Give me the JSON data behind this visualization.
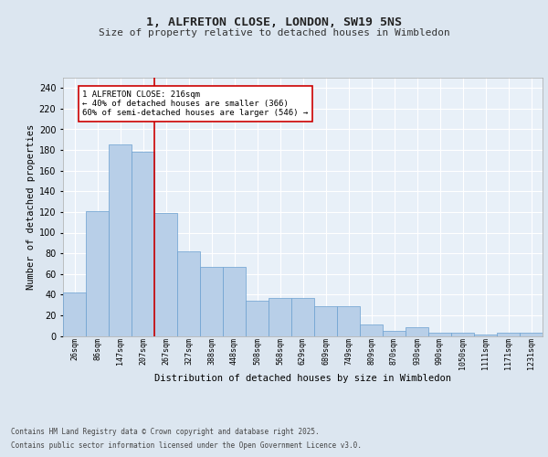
{
  "title1": "1, ALFRETON CLOSE, LONDON, SW19 5NS",
  "title2": "Size of property relative to detached houses in Wimbledon",
  "xlabel": "Distribution of detached houses by size in Wimbledon",
  "ylabel": "Number of detached properties",
  "bar_labels": [
    "26sqm",
    "86sqm",
    "147sqm",
    "207sqm",
    "267sqm",
    "327sqm",
    "388sqm",
    "448sqm",
    "508sqm",
    "568sqm",
    "629sqm",
    "689sqm",
    "749sqm",
    "809sqm",
    "870sqm",
    "930sqm",
    "990sqm",
    "1050sqm",
    "1111sqm",
    "1171sqm",
    "1231sqm"
  ],
  "bar_values": [
    42,
    121,
    185,
    178,
    119,
    82,
    67,
    67,
    34,
    37,
    37,
    29,
    29,
    11,
    5,
    8,
    3,
    3,
    1,
    3,
    3
  ],
  "bar_color": "#b8cfe8",
  "bar_edge_color": "#6a9fd0",
  "red_line_x": 3.5,
  "red_line_color": "#cc0000",
  "annotation_text": "1 ALFRETON CLOSE: 216sqm\n← 40% of detached houses are smaller (366)\n60% of semi-detached houses are larger (546) →",
  "annotation_box_color": "#ffffff",
  "annotation_box_edge": "#cc0000",
  "bg_color": "#dce6f0",
  "plot_bg": "#e8f0f8",
  "footer1": "Contains HM Land Registry data © Crown copyright and database right 2025.",
  "footer2": "Contains public sector information licensed under the Open Government Licence v3.0.",
  "yticks": [
    0,
    20,
    40,
    60,
    80,
    100,
    120,
    140,
    160,
    180,
    200,
    220,
    240
  ],
  "ylim": [
    0,
    250
  ]
}
